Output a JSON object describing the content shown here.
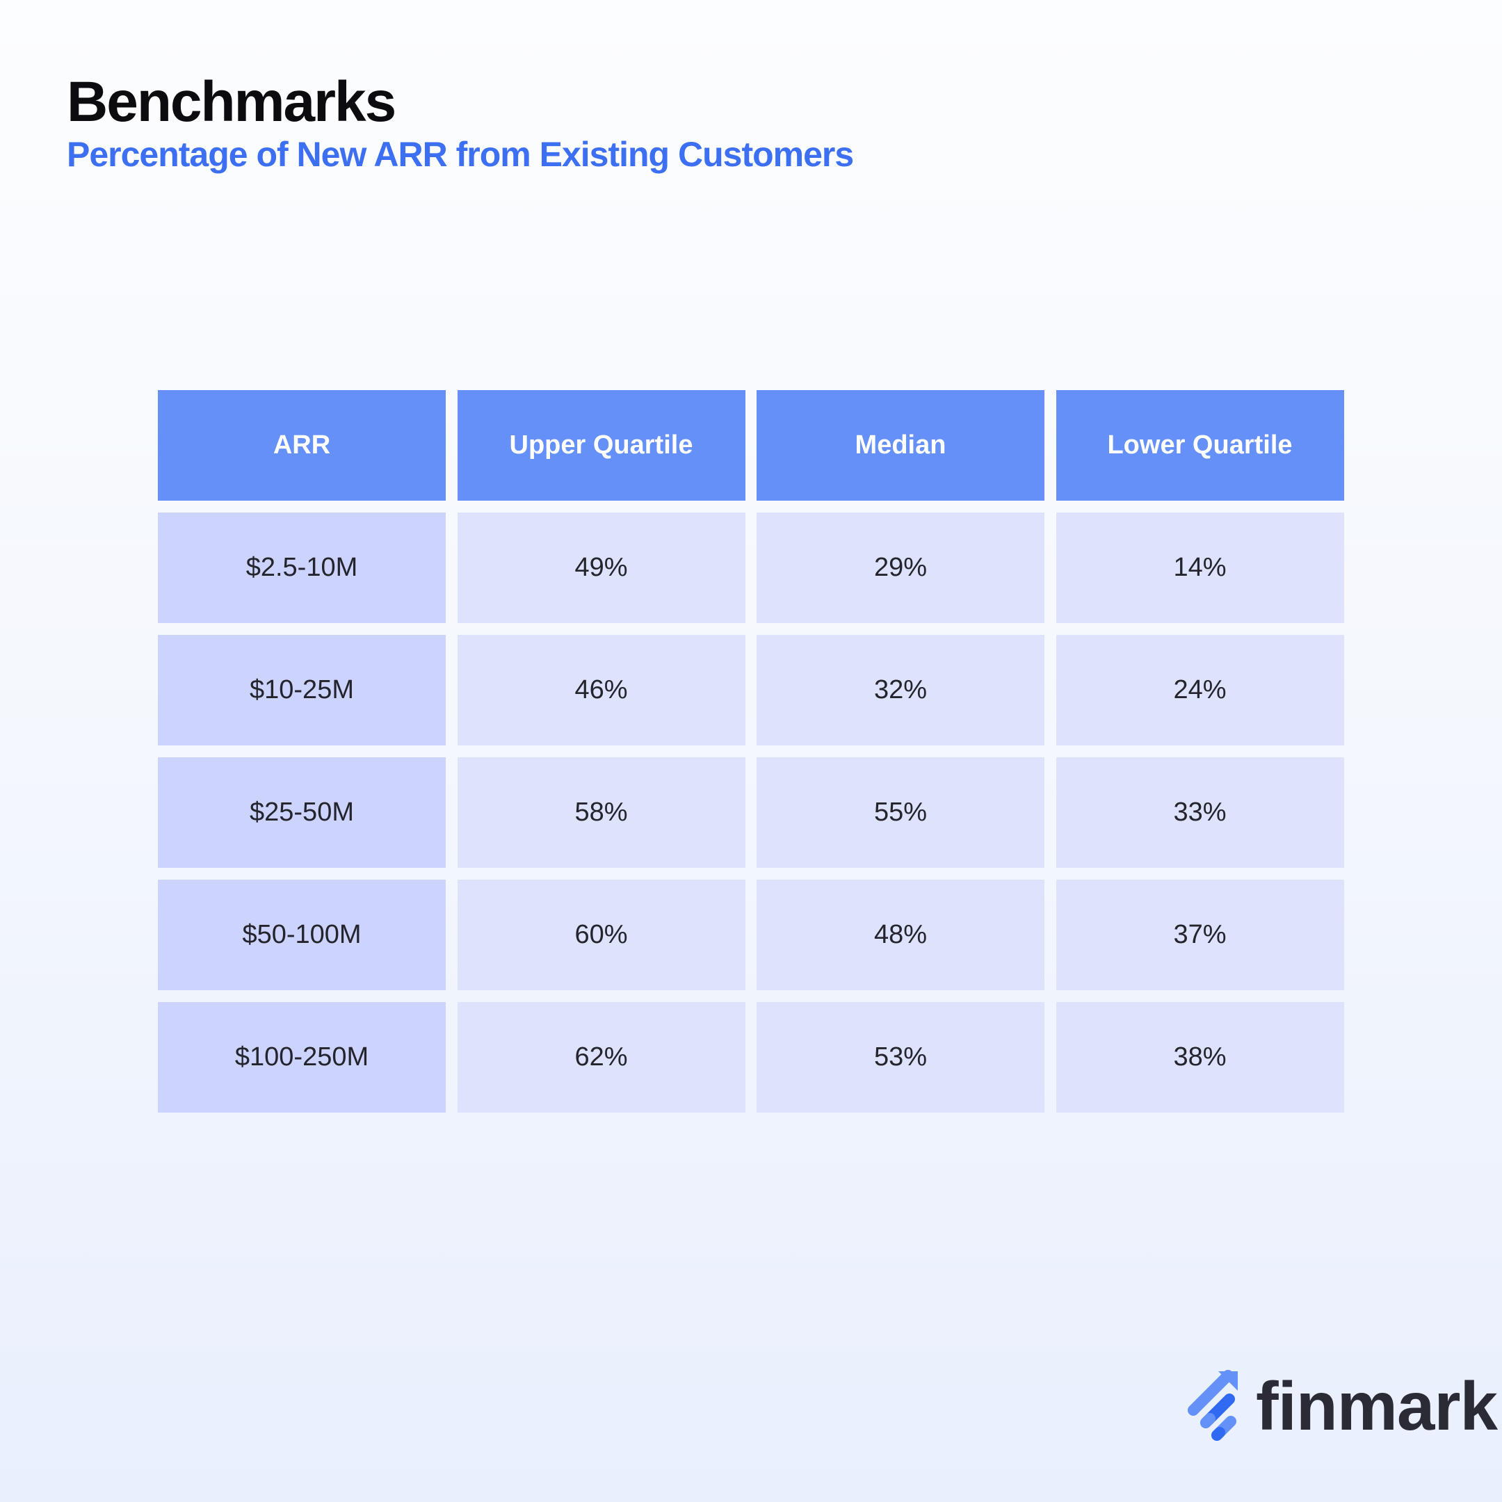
{
  "header": {
    "title": "Benchmarks",
    "subtitle": "Percentage of New ARR from Existing Customers"
  },
  "table": {
    "columns": [
      "ARR",
      "Upper Quartile",
      "Median",
      "Lower Quartile"
    ],
    "rows": [
      [
        "$2.5-10M",
        "49%",
        "29%",
        "14%"
      ],
      [
        "$10-25M",
        "46%",
        "32%",
        "24%"
      ],
      [
        "$25-50M",
        "58%",
        "55%",
        "33%"
      ],
      [
        "$50-100M",
        "60%",
        "48%",
        "37%"
      ],
      [
        "$100-250M",
        "62%",
        "53%",
        "38%"
      ]
    ]
  },
  "brand": {
    "name": "finmark",
    "icon": "finmark-arrow-bars-icon"
  },
  "colors": {
    "accent": "#3d6ff2",
    "header_bg": "#6490f8",
    "first_col_bg": "#ccd3fd",
    "cell_bg": "#dde2fd"
  }
}
